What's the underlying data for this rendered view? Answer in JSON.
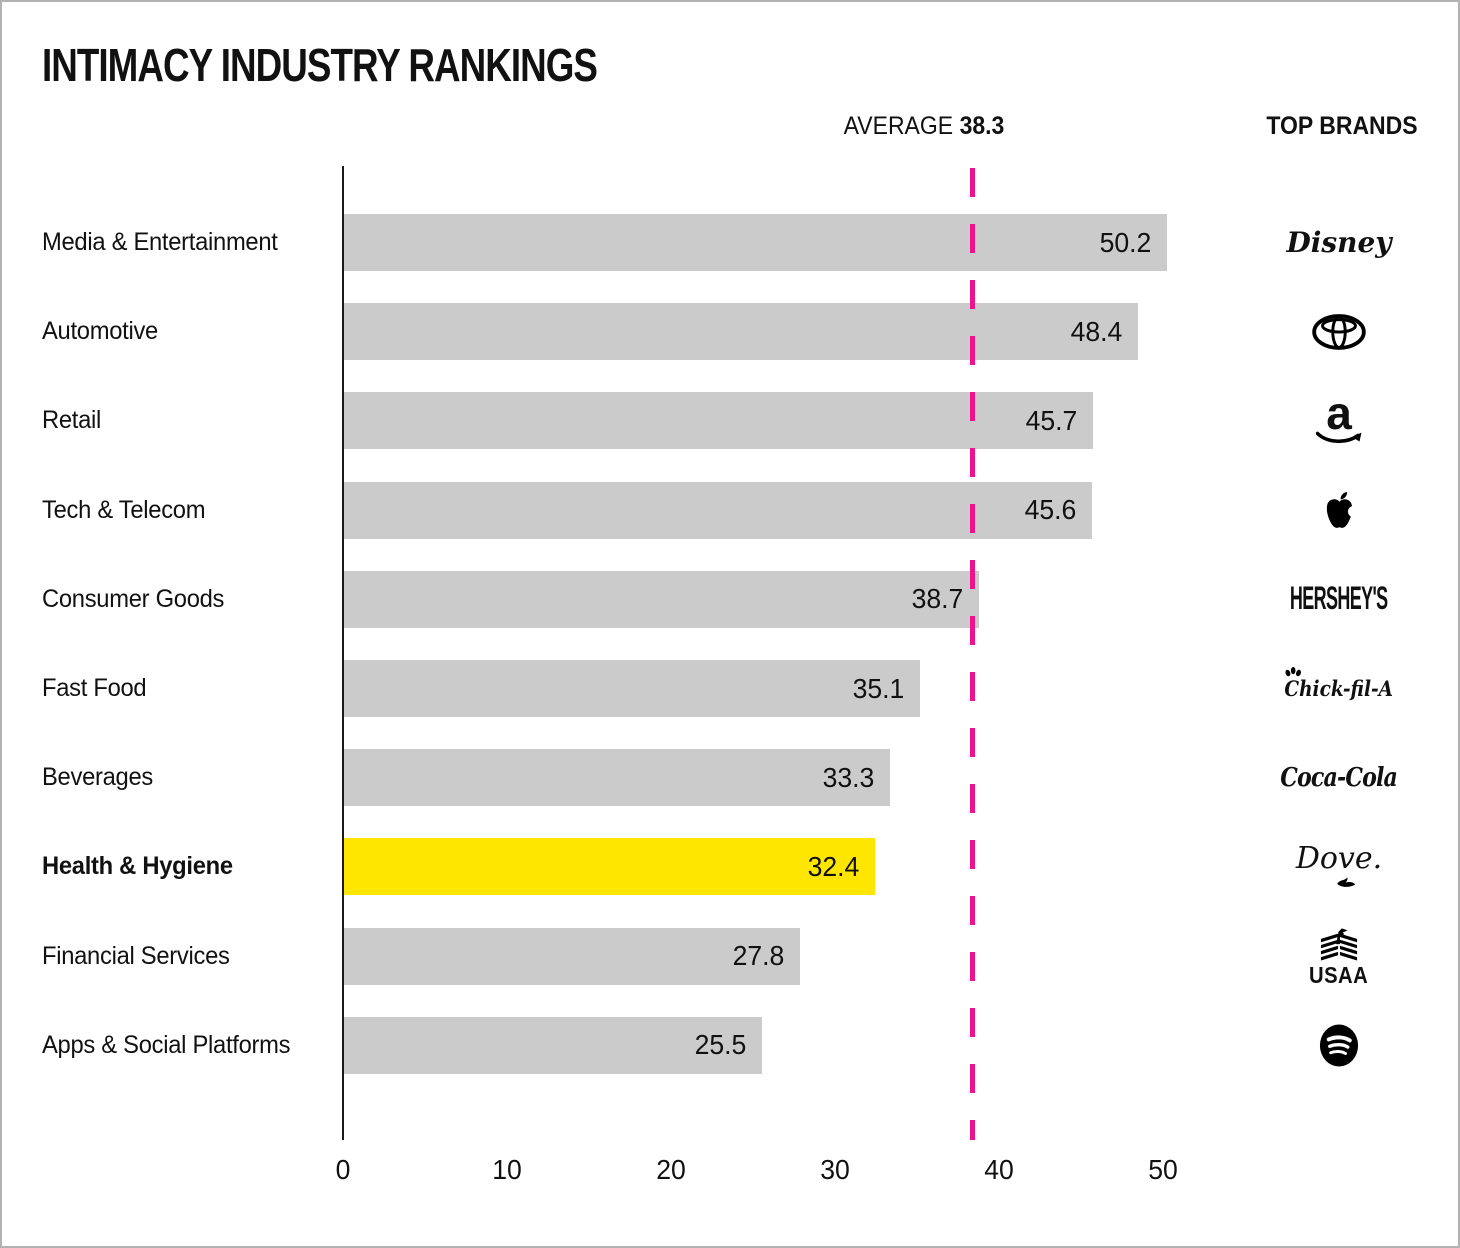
{
  "title": "INTIMACY INDUSTRY RANKINGS",
  "average": {
    "label": "AVERAGE",
    "value": 38.3,
    "value_label": "38.3"
  },
  "top_brands_header": "TOP BRANDS",
  "colors": {
    "bar": "#CBCBCB",
    "highlight_bar": "#FFE600",
    "average_line": "#ED138F",
    "axis": "#1A1A1A",
    "text": "#111111"
  },
  "chart_data": {
    "type": "bar",
    "orientation": "horizontal",
    "title": "INTIMACY INDUSTRY RANKINGS",
    "categories": [
      "Media & Entertainment",
      "Automotive",
      "Retail",
      "Tech & Telecom",
      "Consumer Goods",
      "Fast Food",
      "Beverages",
      "Health & Hygiene",
      "Financial Services",
      "Apps & Social Platforms"
    ],
    "values": [
      50.2,
      48.4,
      45.7,
      45.6,
      38.7,
      35.1,
      33.3,
      32.4,
      27.8,
      25.5
    ],
    "value_labels": [
      "50.2",
      "48.4",
      "45.7",
      "45.6",
      "38.7",
      "35.1",
      "33.3",
      "32.4",
      "27.8",
      "25.5"
    ],
    "highlight_index": 7,
    "average_reference_line": 38.3,
    "x_ticks": [
      0,
      10,
      20,
      30,
      40,
      50
    ],
    "xlim": [
      0,
      56
    ],
    "grid": false,
    "legend": false,
    "top_brands": [
      {
        "name": "Disney",
        "icon": "disney-logo",
        "wordmark": "Disney"
      },
      {
        "name": "Toyota",
        "icon": "toyota-logo",
        "wordmark": ""
      },
      {
        "name": "Amazon",
        "icon": "amazon-logo",
        "wordmark": "a"
      },
      {
        "name": "Apple",
        "icon": "apple-logo",
        "wordmark": ""
      },
      {
        "name": "Hershey's",
        "icon": "hersheys-logo",
        "wordmark": "HERSHEY'S"
      },
      {
        "name": "Chick-fil-A",
        "icon": "chick-fil-a-logo",
        "wordmark": "Chick-fil-A"
      },
      {
        "name": "Coca-Cola",
        "icon": "coca-cola-logo",
        "wordmark": "Coca-Cola"
      },
      {
        "name": "Dove",
        "icon": "dove-logo",
        "wordmark": "Dove."
      },
      {
        "name": "USAA",
        "icon": "usaa-logo",
        "wordmark": "USAA"
      },
      {
        "name": "Spotify",
        "icon": "spotify-logo",
        "wordmark": ""
      }
    ]
  }
}
